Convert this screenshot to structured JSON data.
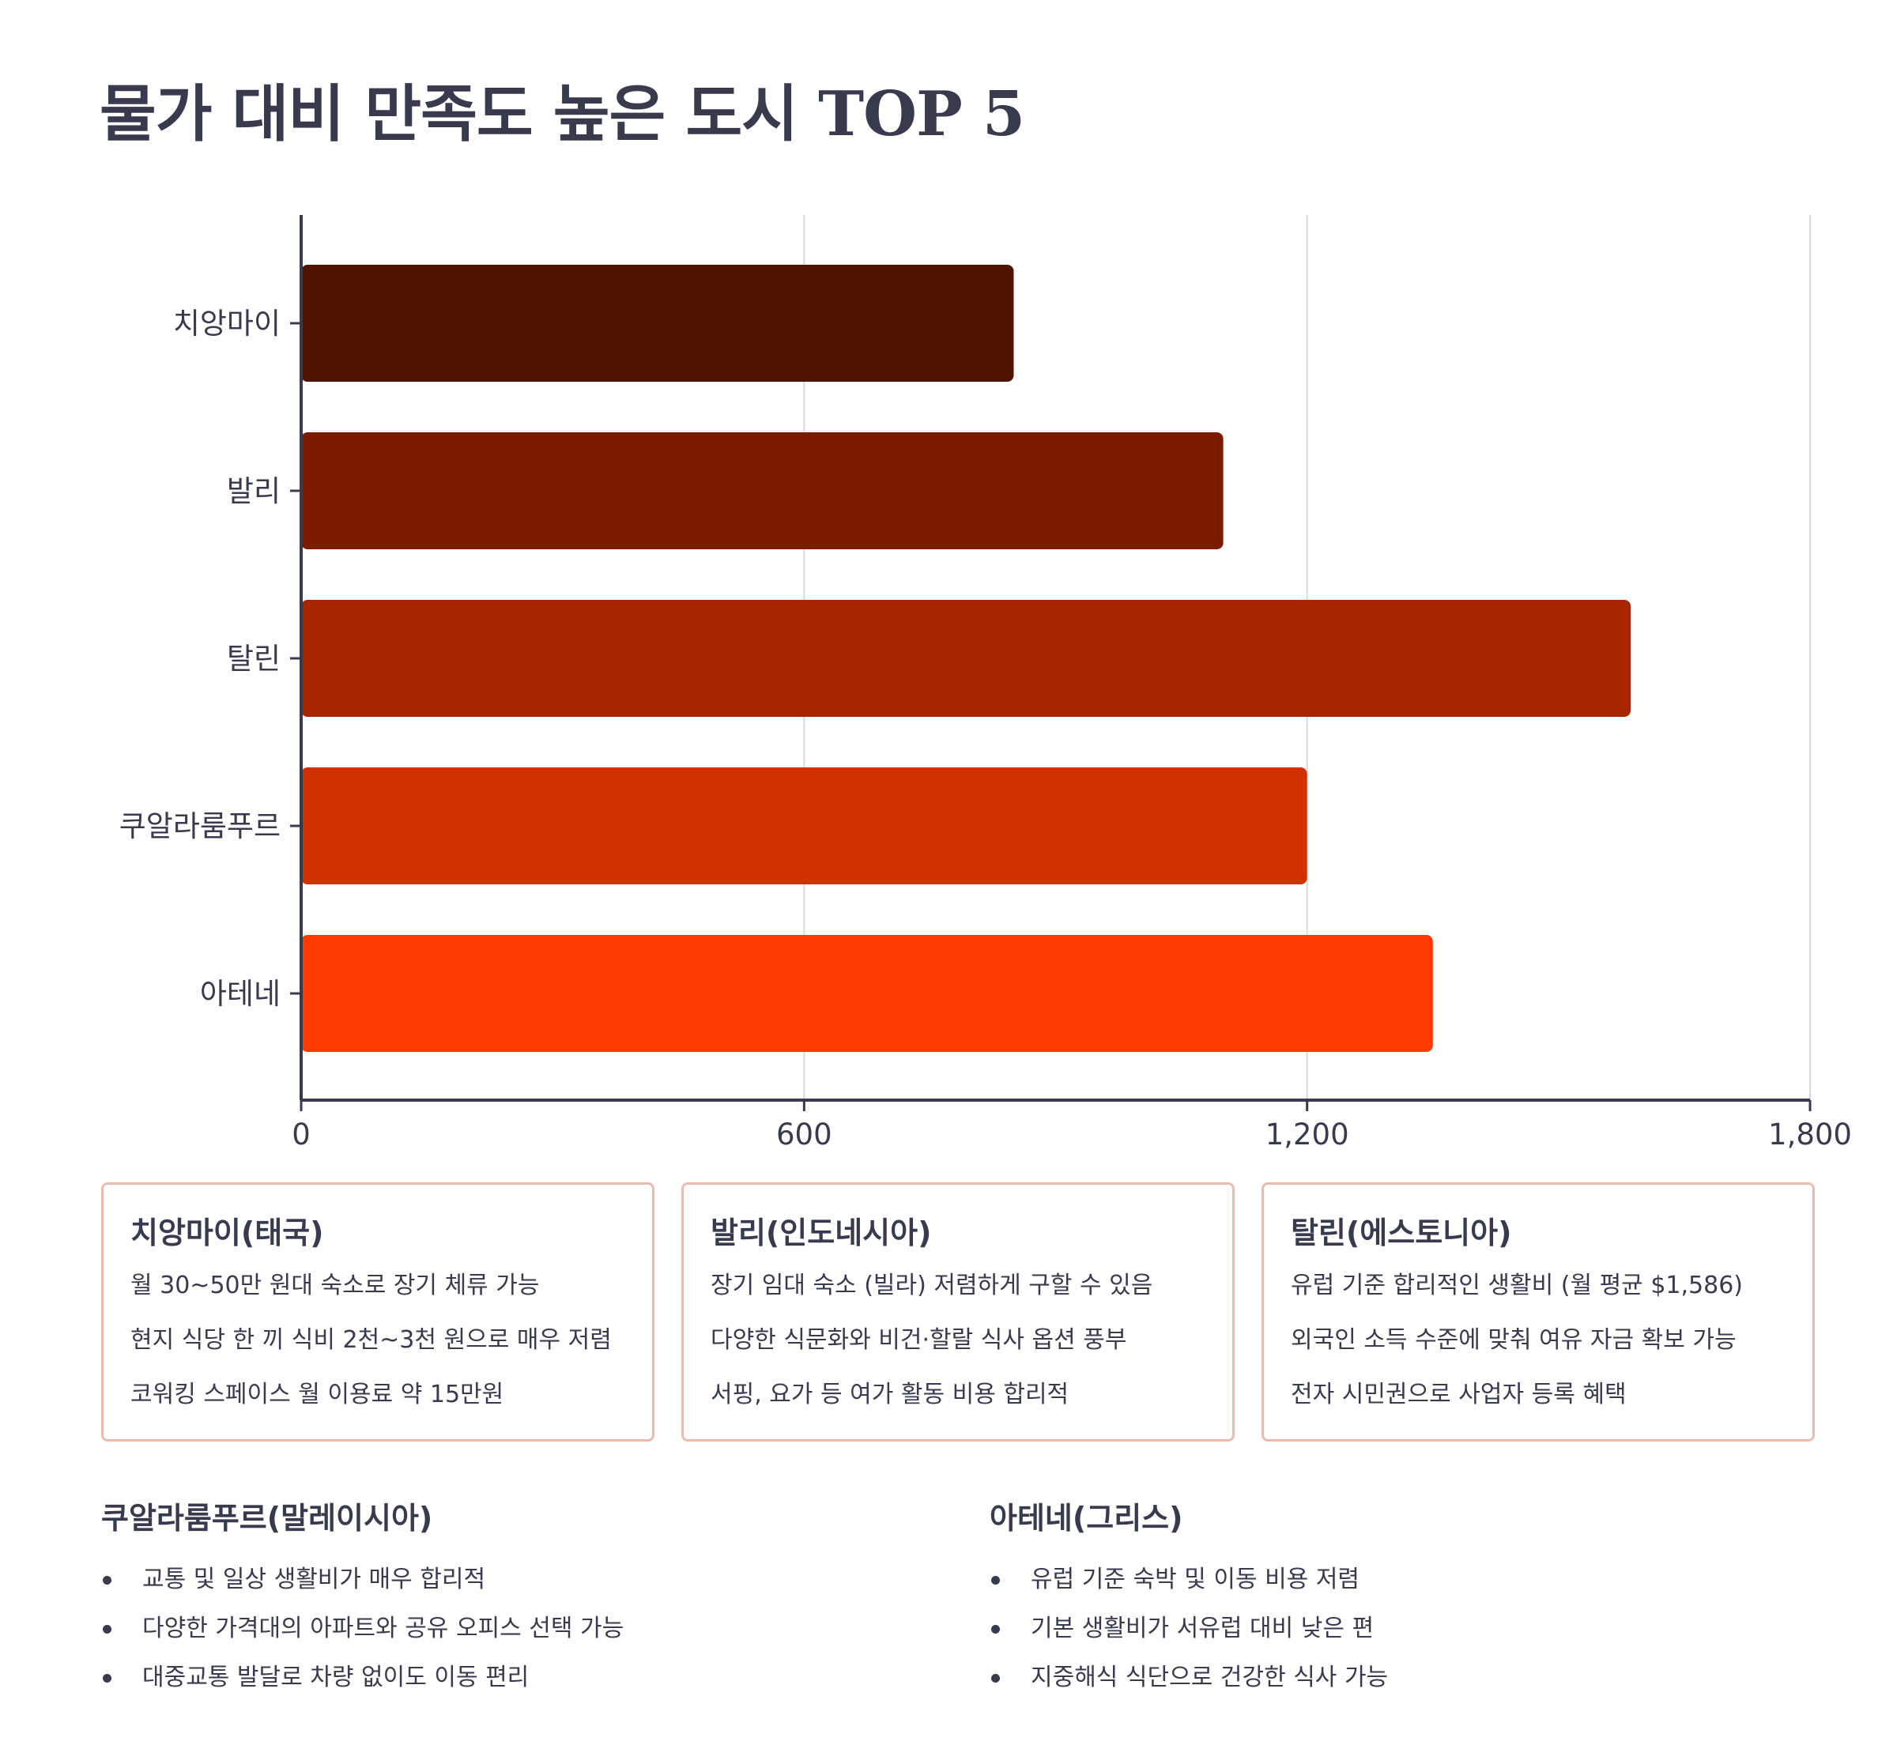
{
  "title": "물가 대비 만족도 높은 도시 TOP 5",
  "chart_data": {
    "type": "bar",
    "orientation": "horizontal",
    "categories": [
      "치앙마이",
      "발리",
      "탈린",
      "쿠알라룸푸르",
      "아테네"
    ],
    "values": [
      850,
      1100,
      1586,
      1200,
      1350
    ],
    "colors": [
      "#4f1400",
      "#7b1c00",
      "#a62600",
      "#d13000",
      "#ff3a00"
    ],
    "xlim": [
      0,
      1800
    ],
    "xticks": [
      0,
      600,
      1200,
      1800
    ],
    "xtick_labels": [
      "0",
      "600",
      "1,200",
      "1,800"
    ],
    "grid": "vertical",
    "legend": "none"
  },
  "cards": [
    {
      "title": "치앙마이(태국)",
      "lines": [
        "월 30~50만 원대 숙소로 장기 체류 가능",
        "현지 식당 한 끼 식비 2천~3천 원으로 매우 저렴",
        "코워킹 스페이스 월 이용료 약 15만원"
      ]
    },
    {
      "title": "발리(인도네시아)",
      "lines": [
        "장기 임대 숙소 (빌라) 저렴하게 구할 수 있음",
        "다양한 식문화와 비건·할랄 식사 옵션 풍부",
        "서핑, 요가 등 여가 활동 비용 합리적"
      ]
    },
    {
      "title": "탈린(에스토니아)",
      "lines": [
        "유럽 기준 합리적인 생활비 (월 평균 $1,586)",
        "외국인 소득 수준에 맞춰 여유 자금 확보 가능",
        "전자 시민권으로 사업자 등록 혜택"
      ]
    }
  ],
  "sections": [
    {
      "title": "쿠알라룸푸르(말레이시아)",
      "items": [
        "교통 및 일상 생활비가 매우 합리적",
        "다양한 가격대의 아파트와 공유 오피스 선택 가능",
        "대중교통 발달로 차량 없이도 이동 편리"
      ]
    },
    {
      "title": "아테네(그리스)",
      "items": [
        "유럽 기준 숙박 및 이동 비용 저렴",
        "기본 생활비가 서유럽 대비 낮은 편",
        "지중해식 식단으로 건강한 식사 가능"
      ]
    }
  ]
}
